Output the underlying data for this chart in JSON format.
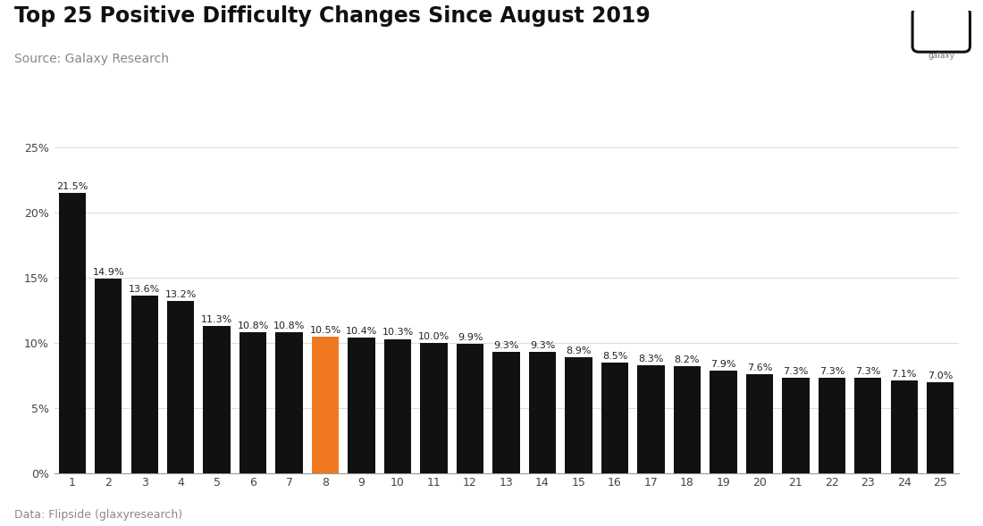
{
  "title": "Top 25 Positive Difficulty Changes Since August 2019",
  "source": "Source: Galaxy Research",
  "footnote": "Data: Flipside (glaxyresearch)",
  "categories": [
    1,
    2,
    3,
    4,
    5,
    6,
    7,
    8,
    9,
    10,
    11,
    12,
    13,
    14,
    15,
    16,
    17,
    18,
    19,
    20,
    21,
    22,
    23,
    24,
    25
  ],
  "values": [
    21.5,
    14.9,
    13.6,
    13.2,
    11.3,
    10.8,
    10.8,
    10.5,
    10.4,
    10.3,
    10.0,
    9.9,
    9.3,
    9.3,
    8.9,
    8.5,
    8.3,
    8.2,
    7.9,
    7.6,
    7.3,
    7.3,
    7.3,
    7.1,
    7.0
  ],
  "bar_colors": [
    "#111111",
    "#111111",
    "#111111",
    "#111111",
    "#111111",
    "#111111",
    "#111111",
    "#F07820",
    "#111111",
    "#111111",
    "#111111",
    "#111111",
    "#111111",
    "#111111",
    "#111111",
    "#111111",
    "#111111",
    "#111111",
    "#111111",
    "#111111",
    "#111111",
    "#111111",
    "#111111",
    "#111111",
    "#111111"
  ],
  "ylim": [
    0,
    25
  ],
  "yticks": [
    0,
    5,
    10,
    15,
    20,
    25
  ],
  "background_color": "#ffffff",
  "title_fontsize": 17,
  "source_fontsize": 10,
  "footnote_fontsize": 9,
  "value_fontsize": 8,
  "tick_fontsize": 9,
  "ytick_fontsize": 9,
  "grid_color": "#dddddd",
  "bar_width": 0.75
}
